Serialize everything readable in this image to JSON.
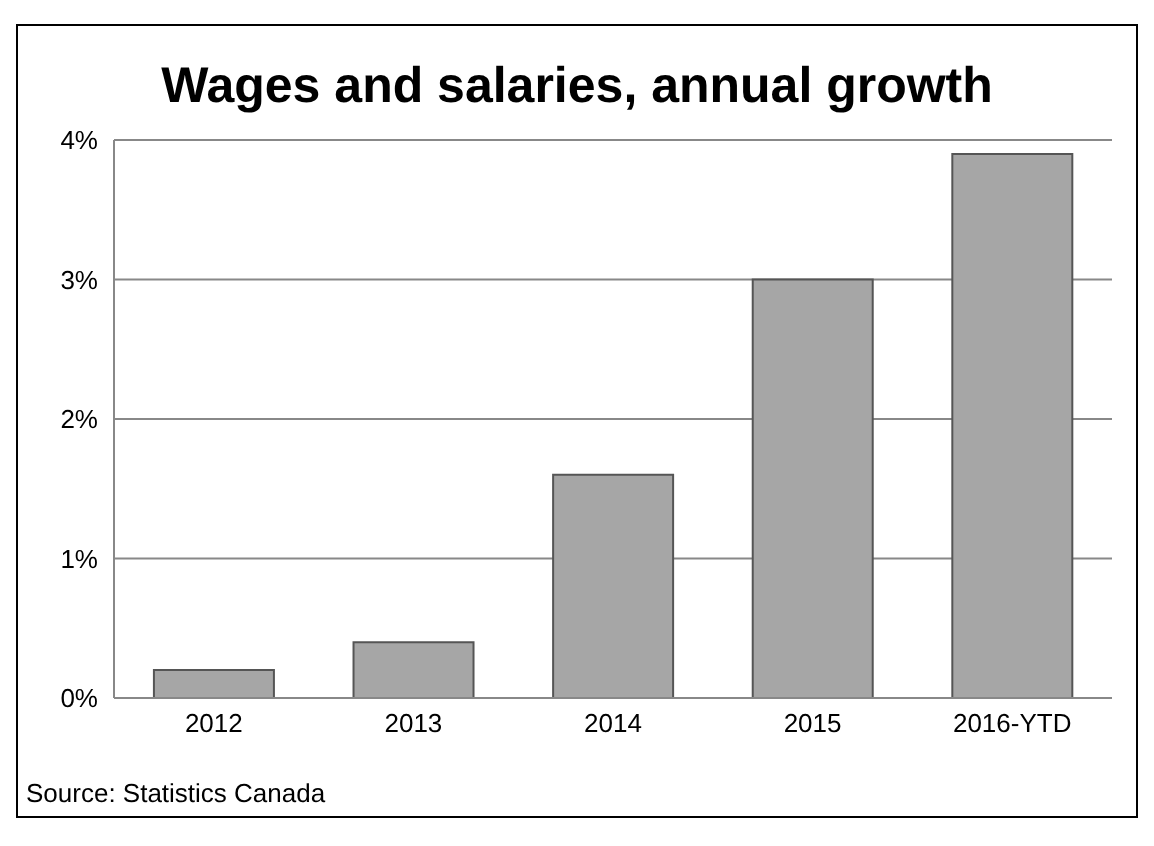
{
  "chart_data": {
    "type": "bar",
    "title": "Wages and salaries, annual growth",
    "categories": [
      "2012",
      "2013",
      "2014",
      "2015",
      "2016-YTD"
    ],
    "values": [
      0.2,
      0.4,
      1.6,
      3.0,
      3.9
    ],
    "color": "#a6a6a6",
    "ylim": [
      0,
      4
    ],
    "yticks": [
      {
        "value": 0,
        "label": "0%"
      },
      {
        "value": 1,
        "label": "1%"
      },
      {
        "value": 2,
        "label": "2%"
      },
      {
        "value": 3,
        "label": "3%"
      },
      {
        "value": 4,
        "label": "4%"
      }
    ],
    "grid": "y",
    "annotations": [
      "Source: Statistics Canada"
    ]
  }
}
